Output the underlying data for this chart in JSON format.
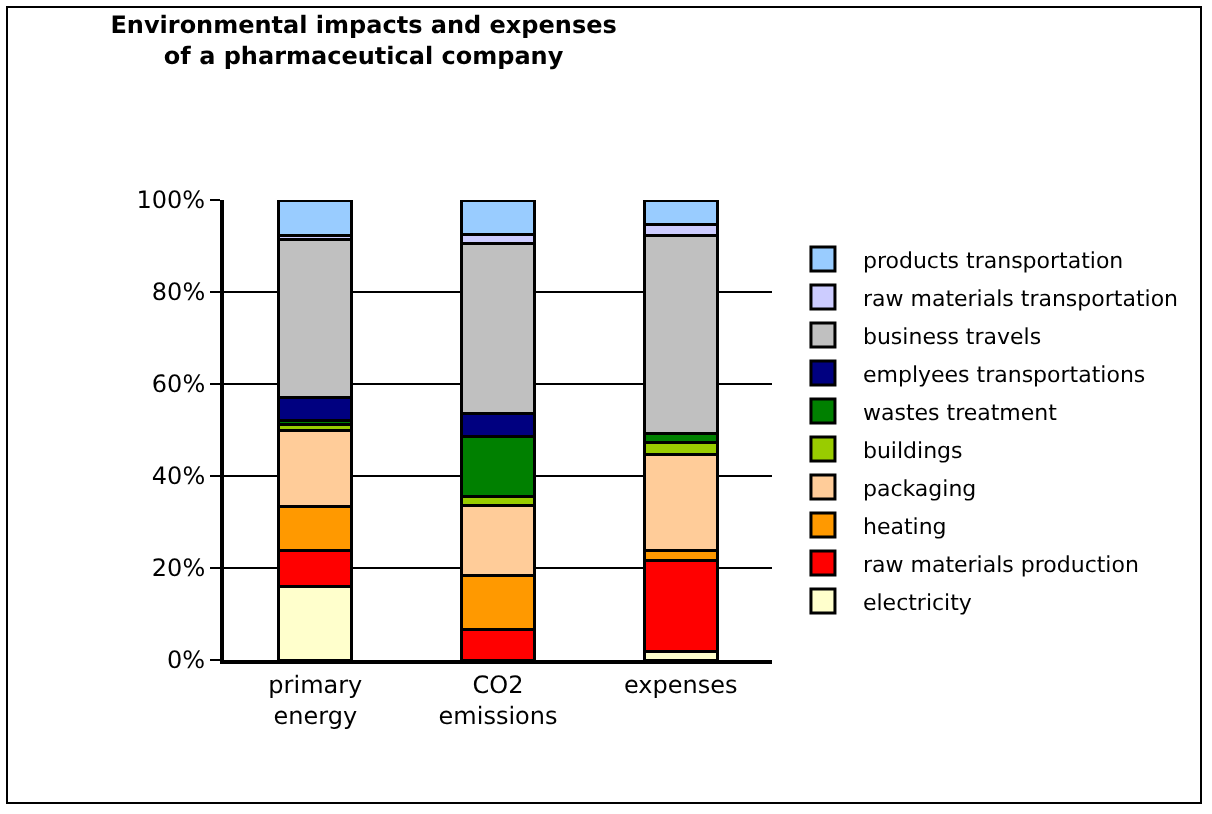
{
  "chart_data": {
    "type": "bar",
    "title": "Environmental impacts and expenses\nof a pharmaceutical company",
    "categories": [
      "primary energy",
      "CO2 emissions",
      "expenses"
    ],
    "stacked": true,
    "series": [
      {
        "name": "electricity",
        "color": "#ffffcc",
        "values": [
          16,
          null,
          1.8
        ]
      },
      {
        "name": "raw materials production",
        "color": "#ff0000",
        "values": [
          7.7,
          6.7,
          19.9
        ]
      },
      {
        "name": "heating",
        "color": "#ff9900",
        "values": [
          9.6,
          11.7,
          2
        ]
      },
      {
        "name": "packaging",
        "color": "#ffcc99",
        "values": [
          16.7,
          15.2,
          21
        ]
      },
      {
        "name": "buildings",
        "color": "#99cc00",
        "values": [
          1.3,
          2,
          2.5
        ]
      },
      {
        "name": "wastes treatment",
        "color": "#008000",
        "values": [
          0.7,
          12.9,
          2
        ]
      },
      {
        "name": "emplyees transportations",
        "color": "#000080",
        "values": [
          5,
          5.1,
          0
        ]
      },
      {
        "name": "business travels",
        "color": "#c0c0c0",
        "values": [
          34.5,
          36.9,
          43
        ]
      },
      {
        "name": "raw materials transportation",
        "color": "#ccccff",
        "values": [
          0.7,
          2.1,
          2.4
        ]
      },
      {
        "name": "products transportation",
        "color": "#99ccff",
        "values": [
          7.8,
          7.4,
          5.4
        ]
      }
    ],
    "ylim": [
      0,
      100
    ],
    "yticks": [
      {
        "value": 0,
        "label": "0%"
      },
      {
        "value": 20,
        "label": "20%"
      },
      {
        "value": 40,
        "label": "40%"
      },
      {
        "value": 60,
        "label": "60%"
      },
      {
        "value": 80,
        "label": "80%"
      },
      {
        "value": 100,
        "label": "100%"
      }
    ],
    "grid": "y",
    "legend": "right"
  }
}
